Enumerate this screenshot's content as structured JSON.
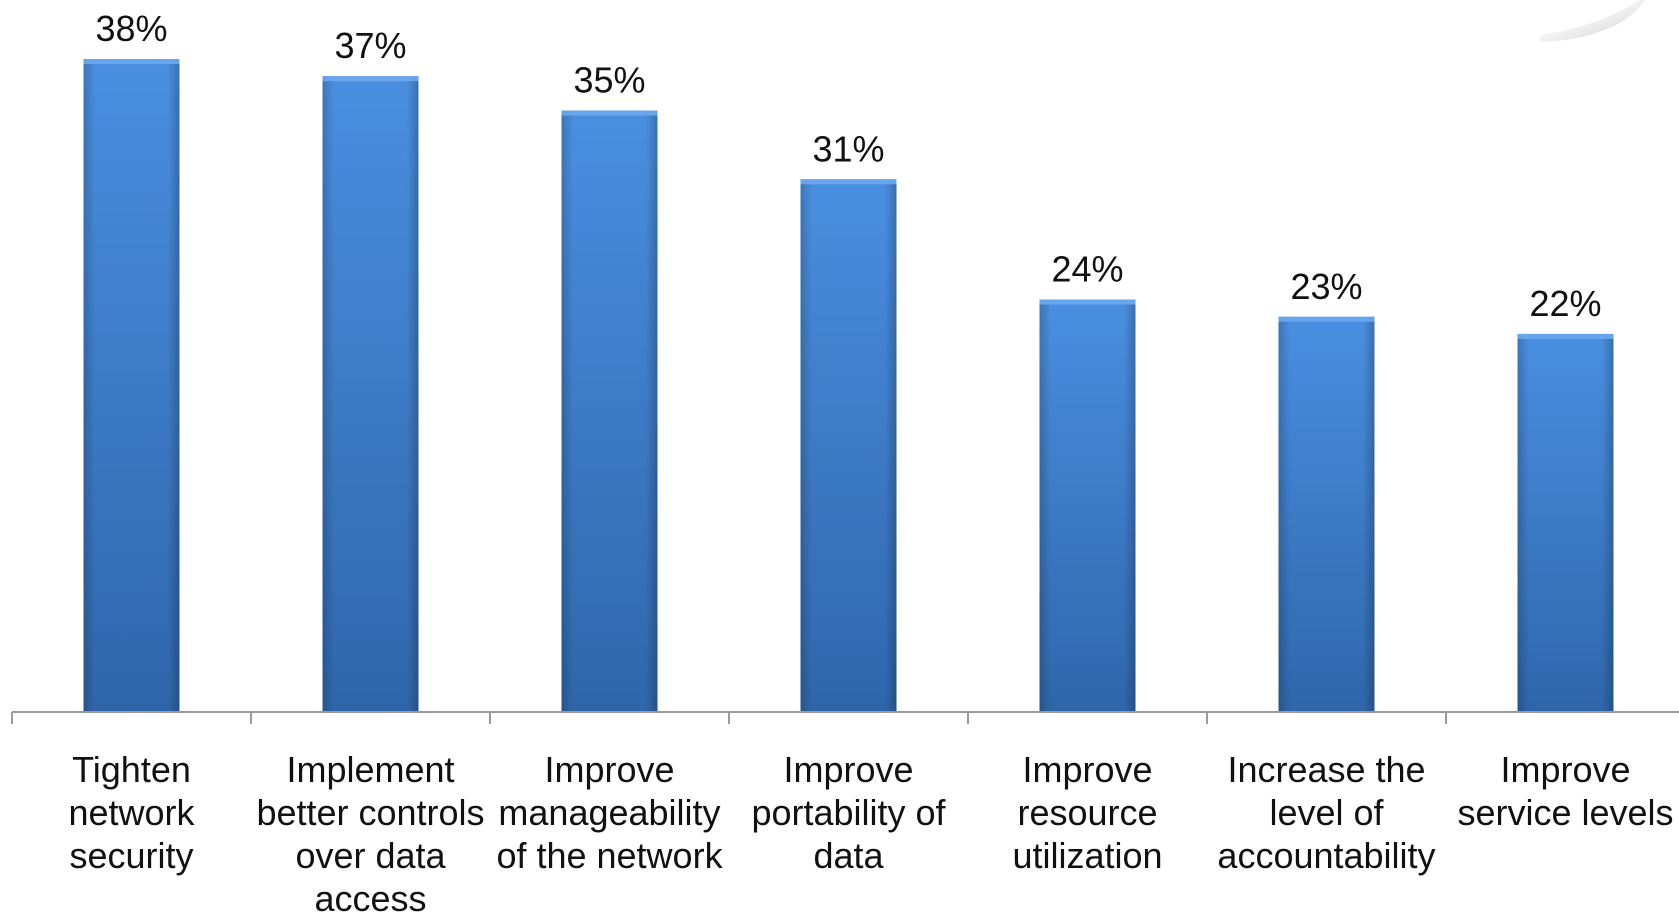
{
  "chart_data": {
    "type": "bar",
    "categories": [
      [
        "Tighten",
        "network",
        "security"
      ],
      [
        "Implement",
        "better controls",
        "over data",
        "access"
      ],
      [
        "Improve",
        "manageability",
        "of the network"
      ],
      [
        "Improve",
        "portability of",
        "data"
      ],
      [
        "Improve",
        "resource",
        "utilization"
      ],
      [
        "Increase the",
        "level of",
        "accountability"
      ],
      [
        "Improve",
        "service levels"
      ]
    ],
    "values": [
      38,
      37,
      35,
      31,
      24,
      23,
      22
    ],
    "data_labels": [
      "38%",
      "37%",
      "35%",
      "31%",
      "24%",
      "23%",
      "22%"
    ],
    "ylim": [
      0,
      38
    ],
    "grid": false,
    "legend": "none",
    "colors": {
      "bar_light": "#4a8fe0",
      "bar_mid": "#3a78c9",
      "bar_dark": "#2c5f9e",
      "axis": "#9a9a9a",
      "text": "#111111"
    }
  }
}
